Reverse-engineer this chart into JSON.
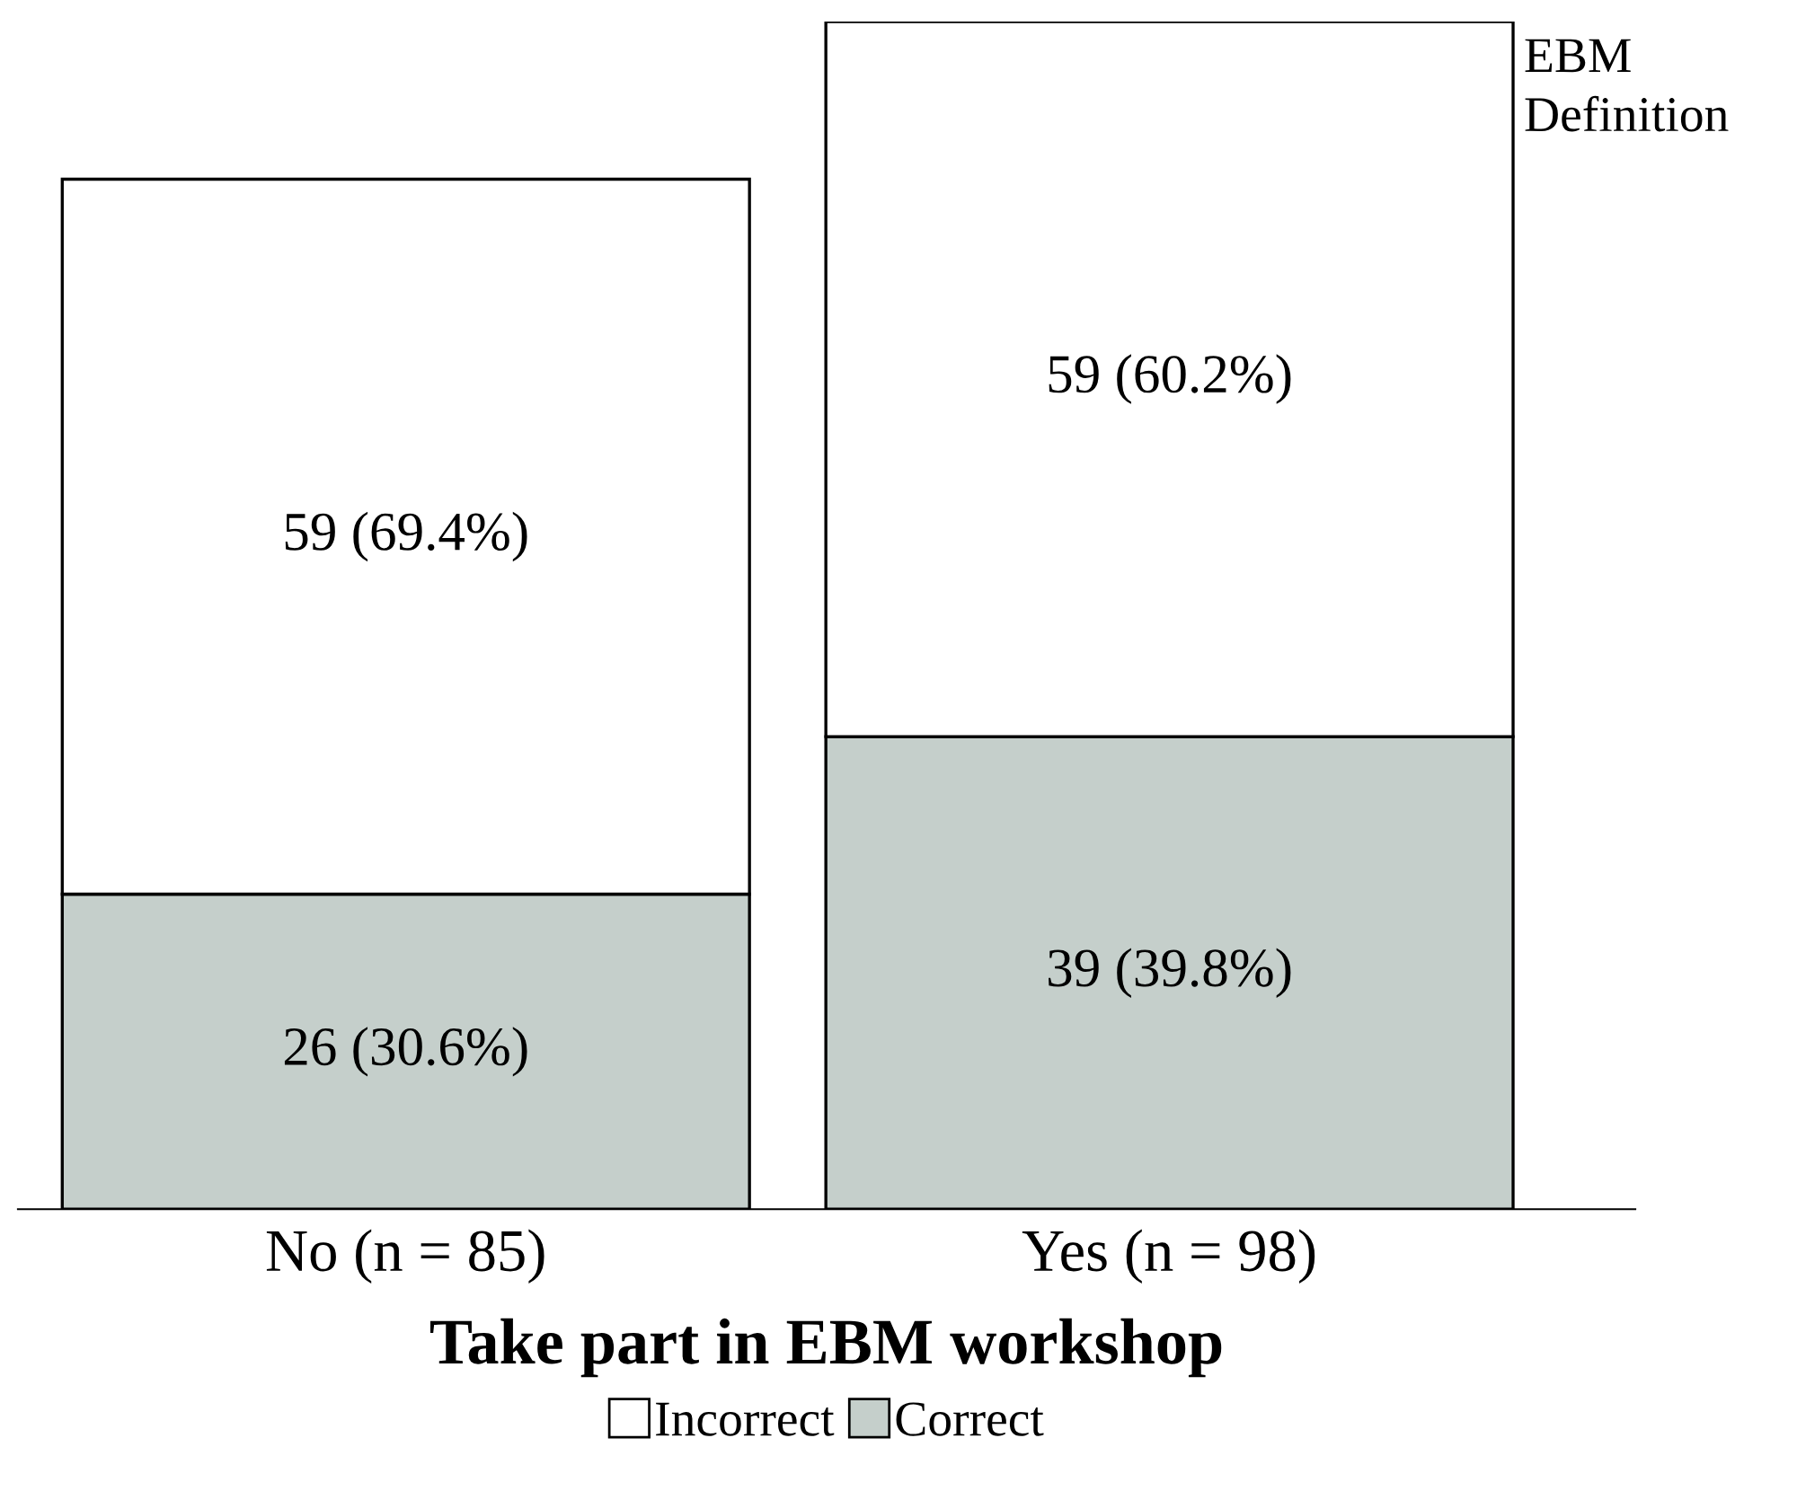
{
  "chart_data": {
    "type": "bar",
    "stacked": true,
    "xlabel": "Take part in EBM workshop",
    "categories": [
      "No (n = 85)",
      "Yes (n = 98)"
    ],
    "series": [
      {
        "name": "Correct",
        "color": "#c5cfcb",
        "values": [
          26,
          39
        ],
        "value_labels": [
          "26 (30.6%)",
          "39 (39.8%)"
        ]
      },
      {
        "name": "Incorrect",
        "color": "#ffffff",
        "values": [
          59,
          59
        ],
        "value_labels": [
          "59 (69.4%)",
          "59 (60.2%)"
        ]
      }
    ],
    "legend": "bottom",
    "legend_title": "EBM Definition",
    "grid": false
  }
}
